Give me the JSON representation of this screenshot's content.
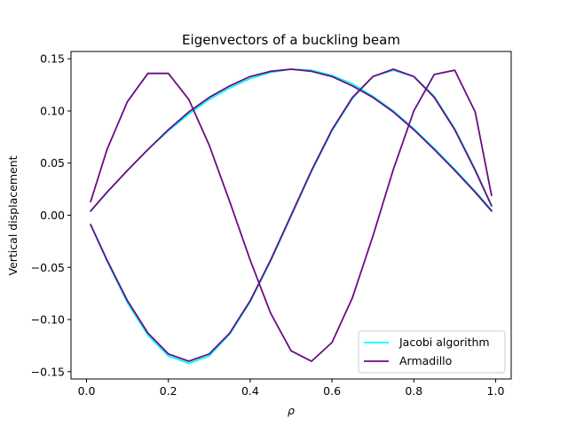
{
  "chart_data": {
    "type": "line",
    "title": "Eigenvectors of a buckling beam",
    "xlabel": "ρ",
    "ylabel": "Vertical displacement",
    "xlim": [
      -0.038,
      1.038
    ],
    "ylim": [
      -0.157,
      0.157
    ],
    "xticks": [
      0.0,
      0.2,
      0.4,
      0.6,
      0.8,
      1.0
    ],
    "xtick_labels": [
      "0.0",
      "0.2",
      "0.4",
      "0.6",
      "0.8",
      "1.0"
    ],
    "yticks": [
      0.15,
      0.1,
      0.05,
      0.0,
      -0.05,
      -0.1,
      -0.15
    ],
    "ytick_labels": [
      "0.15",
      "0.10",
      "0.05",
      "0.00",
      "−0.05",
      "−0.10",
      "−0.15"
    ],
    "grid": false,
    "legend_position": "lower-right",
    "legend": [
      "Jacobi algorithm",
      "Armadillo"
    ],
    "series": [
      {
        "name": "Jacobi algorithm",
        "color": "#00ffff",
        "lines": [
          {
            "x": [
              0.01,
              0.05,
              0.1,
              0.15,
              0.2,
              0.25,
              0.3,
              0.35,
              0.4,
              0.45,
              0.5,
              0.55,
              0.6,
              0.65,
              0.7,
              0.75,
              0.8,
              0.85,
              0.9,
              0.95,
              0.99
            ],
            "y": [
              0.004,
              0.022,
              0.043,
              0.063,
              0.081,
              0.097,
              0.111,
              0.122,
              0.131,
              0.137,
              0.14,
              0.139,
              0.134,
              0.126,
              0.114,
              0.1,
              0.083,
              0.064,
              0.044,
              0.023,
              0.005
            ]
          },
          {
            "x": [
              0.01,
              0.05,
              0.1,
              0.15,
              0.2,
              0.25,
              0.3,
              0.35,
              0.4,
              0.45,
              0.5,
              0.55,
              0.6,
              0.65,
              0.7,
              0.75,
              0.8,
              0.85,
              0.9,
              0.95,
              0.99
            ],
            "y": [
              -0.009,
              -0.044,
              -0.084,
              -0.115,
              -0.135,
              -0.142,
              -0.135,
              -0.114,
              -0.083,
              -0.044,
              -0.001,
              0.042,
              0.081,
              0.112,
              0.133,
              0.139,
              0.133,
              0.114,
              0.083,
              0.044,
              0.009
            ]
          }
        ]
      },
      {
        "name": "Armadillo",
        "color": "#6a0d83",
        "lines": [
          {
            "x": [
              0.01,
              0.05,
              0.1,
              0.15,
              0.2,
              0.25,
              0.3,
              0.35,
              0.4,
              0.45,
              0.5,
              0.55,
              0.6,
              0.65,
              0.7,
              0.75,
              0.8,
              0.85,
              0.9,
              0.95,
              0.99
            ],
            "y": [
              0.004,
              0.022,
              0.043,
              0.063,
              0.082,
              0.099,
              0.113,
              0.124,
              0.133,
              0.138,
              0.14,
              0.138,
              0.133,
              0.124,
              0.113,
              0.099,
              0.082,
              0.063,
              0.043,
              0.022,
              0.004
            ]
          },
          {
            "x": [
              0.01,
              0.05,
              0.1,
              0.15,
              0.2,
              0.25,
              0.3,
              0.35,
              0.4,
              0.45,
              0.5,
              0.55,
              0.6,
              0.65,
              0.7,
              0.75,
              0.8,
              0.85,
              0.9,
              0.95,
              0.99
            ],
            "y": [
              -0.009,
              -0.043,
              -0.082,
              -0.113,
              -0.133,
              -0.14,
              -0.133,
              -0.113,
              -0.082,
              -0.043,
              0.0,
              0.043,
              0.082,
              0.113,
              0.133,
              0.14,
              0.133,
              0.113,
              0.082,
              0.043,
              0.009
            ]
          },
          {
            "x": [
              0.01,
              0.05,
              0.1,
              0.15,
              0.2,
              0.25,
              0.3,
              0.35,
              0.4,
              0.45,
              0.5,
              0.55,
              0.6,
              0.65,
              0.7,
              0.75,
              0.8,
              0.85,
              0.9,
              0.95,
              0.99
            ],
            "y": [
              0.013,
              0.063,
              0.109,
              0.136,
              0.136,
              0.111,
              0.067,
              0.013,
              -0.043,
              -0.094,
              -0.13,
              -0.14,
              -0.122,
              -0.079,
              -0.02,
              0.044,
              0.1,
              0.135,
              0.139,
              0.099,
              0.019
            ]
          }
        ]
      }
    ]
  }
}
